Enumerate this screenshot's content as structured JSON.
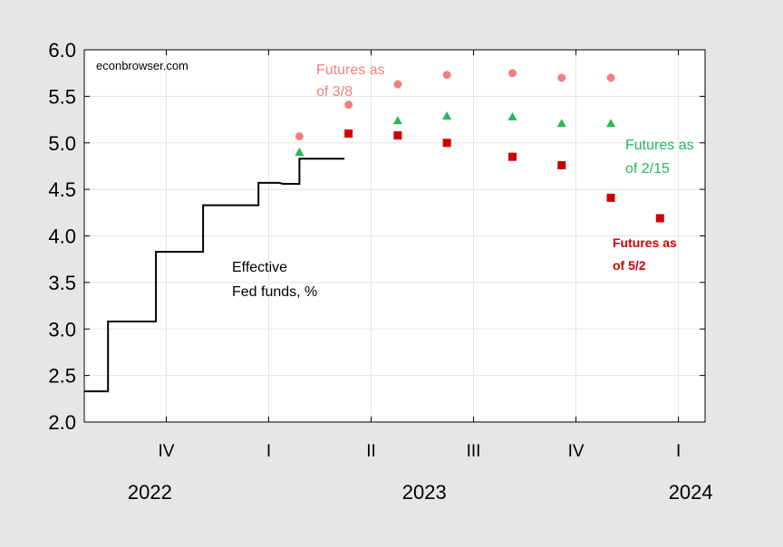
{
  "chart_data": {
    "type": "line",
    "title": "",
    "source_label": "econbrowser.com",
    "ylim": [
      2.0,
      6.0
    ],
    "yticks": [
      "2.0",
      "2.5",
      "3.0",
      "3.5",
      "4.0",
      "4.5",
      "5.0",
      "5.5",
      "6.0"
    ],
    "xlim": [
      2022.675,
      2024.19
    ],
    "x_quarter_ticks": [
      {
        "label": "IV",
        "x": 2022.875
      },
      {
        "label": "I",
        "x": 2023.125
      },
      {
        "label": "II",
        "x": 2023.375
      },
      {
        "label": "III",
        "x": 2023.625
      },
      {
        "label": "IV",
        "x": 2023.875
      },
      {
        "label": "I",
        "x": 2024.125
      }
    ],
    "x_year_labels": [
      {
        "label": "2022",
        "x": 2022.835
      },
      {
        "label": "2023",
        "x": 2023.505
      },
      {
        "label": "2024",
        "x": 2024.155
      }
    ],
    "grid": true,
    "series": [
      {
        "name": "Effective Fed funds, %",
        "style": "step-line",
        "color": "#000000",
        "points": [
          [
            2022.675,
            2.33
          ],
          [
            2022.733,
            2.33
          ],
          [
            2022.733,
            3.08
          ],
          [
            2022.85,
            3.08
          ],
          [
            2022.85,
            3.83
          ],
          [
            2022.965,
            3.83
          ],
          [
            2022.965,
            4.33
          ],
          [
            2023.1,
            4.33
          ],
          [
            2023.1,
            4.57
          ],
          [
            2023.15,
            4.57
          ],
          [
            2023.16,
            4.56
          ],
          [
            2023.2,
            4.56
          ],
          [
            2023.2,
            4.83
          ],
          [
            2023.31,
            4.83
          ]
        ]
      },
      {
        "name": "Futures as of 3/8",
        "style": "marker-circle",
        "color": "#f08080",
        "points": [
          [
            2023.2,
            5.07
          ],
          [
            2023.32,
            5.41
          ],
          [
            2023.44,
            5.63
          ],
          [
            2023.56,
            5.73
          ],
          [
            2023.72,
            5.75
          ],
          [
            2023.84,
            5.7
          ],
          [
            2023.96,
            5.7
          ]
        ]
      },
      {
        "name": "Futures as of 2/15",
        "style": "marker-triangle",
        "color": "#22bb55",
        "points": [
          [
            2023.2,
            4.9
          ],
          [
            2023.44,
            5.24
          ],
          [
            2023.56,
            5.29
          ],
          [
            2023.72,
            5.28
          ],
          [
            2023.84,
            5.21
          ],
          [
            2023.96,
            5.21
          ]
        ]
      },
      {
        "name": "Futures as of 5/2",
        "style": "marker-square",
        "color": "#cc0000",
        "points": [
          [
            2023.32,
            5.1
          ],
          [
            2023.44,
            5.08
          ],
          [
            2023.56,
            5.0
          ],
          [
            2023.72,
            4.85
          ],
          [
            2023.84,
            4.76
          ],
          [
            2023.96,
            4.41
          ],
          [
            2024.08,
            4.19
          ]
        ]
      }
    ],
    "annotations": [
      {
        "lines": [
          "Effective",
          "Fed funds, %"
        ],
        "color": "#000000"
      },
      {
        "lines": [
          "Futures as",
          "of 3/8"
        ],
        "color": "#f08080"
      },
      {
        "lines": [
          "Futures as",
          "of 2/15"
        ],
        "color": "#22bb55"
      },
      {
        "lines": [
          "Futures as",
          "of 5/2"
        ],
        "color": "#cc0000"
      }
    ]
  }
}
